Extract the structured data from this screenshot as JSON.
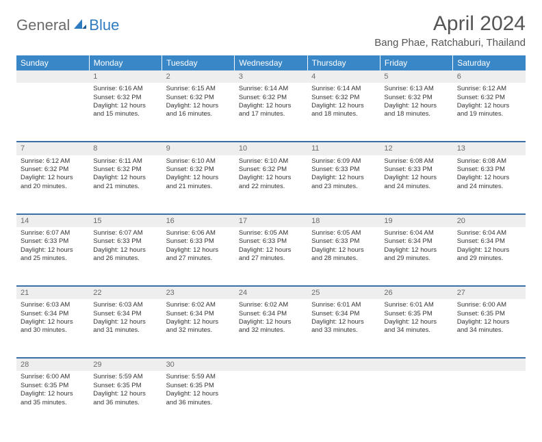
{
  "logo": {
    "part1": "General",
    "part2": "Blue"
  },
  "title": "April 2024",
  "location": "Bang Phae, Ratchaburi, Thailand",
  "colors": {
    "header_bg": "#3a87c8",
    "header_text": "#ffffff",
    "daynum_bg": "#eeeeee",
    "daynum_text": "#6a6a6a",
    "row_border": "#3a6ea5",
    "body_text": "#333333",
    "title_text": "#555555",
    "logo_gray": "#6a6a6a",
    "logo_blue": "#2f7bbf"
  },
  "day_headers": [
    "Sunday",
    "Monday",
    "Tuesday",
    "Wednesday",
    "Thursday",
    "Friday",
    "Saturday"
  ],
  "weeks": [
    [
      {
        "n": "",
        "sr": "",
        "ss": "",
        "dl": ""
      },
      {
        "n": "1",
        "sr": "6:16 AM",
        "ss": "6:32 PM",
        "dl": "12 hours and 15 minutes."
      },
      {
        "n": "2",
        "sr": "6:15 AM",
        "ss": "6:32 PM",
        "dl": "12 hours and 16 minutes."
      },
      {
        "n": "3",
        "sr": "6:14 AM",
        "ss": "6:32 PM",
        "dl": "12 hours and 17 minutes."
      },
      {
        "n": "4",
        "sr": "6:14 AM",
        "ss": "6:32 PM",
        "dl": "12 hours and 18 minutes."
      },
      {
        "n": "5",
        "sr": "6:13 AM",
        "ss": "6:32 PM",
        "dl": "12 hours and 18 minutes."
      },
      {
        "n": "6",
        "sr": "6:12 AM",
        "ss": "6:32 PM",
        "dl": "12 hours and 19 minutes."
      }
    ],
    [
      {
        "n": "7",
        "sr": "6:12 AM",
        "ss": "6:32 PM",
        "dl": "12 hours and 20 minutes."
      },
      {
        "n": "8",
        "sr": "6:11 AM",
        "ss": "6:32 PM",
        "dl": "12 hours and 21 minutes."
      },
      {
        "n": "9",
        "sr": "6:10 AM",
        "ss": "6:32 PM",
        "dl": "12 hours and 21 minutes."
      },
      {
        "n": "10",
        "sr": "6:10 AM",
        "ss": "6:32 PM",
        "dl": "12 hours and 22 minutes."
      },
      {
        "n": "11",
        "sr": "6:09 AM",
        "ss": "6:33 PM",
        "dl": "12 hours and 23 minutes."
      },
      {
        "n": "12",
        "sr": "6:08 AM",
        "ss": "6:33 PM",
        "dl": "12 hours and 24 minutes."
      },
      {
        "n": "13",
        "sr": "6:08 AM",
        "ss": "6:33 PM",
        "dl": "12 hours and 24 minutes."
      }
    ],
    [
      {
        "n": "14",
        "sr": "6:07 AM",
        "ss": "6:33 PM",
        "dl": "12 hours and 25 minutes."
      },
      {
        "n": "15",
        "sr": "6:07 AM",
        "ss": "6:33 PM",
        "dl": "12 hours and 26 minutes."
      },
      {
        "n": "16",
        "sr": "6:06 AM",
        "ss": "6:33 PM",
        "dl": "12 hours and 27 minutes."
      },
      {
        "n": "17",
        "sr": "6:05 AM",
        "ss": "6:33 PM",
        "dl": "12 hours and 27 minutes."
      },
      {
        "n": "18",
        "sr": "6:05 AM",
        "ss": "6:33 PM",
        "dl": "12 hours and 28 minutes."
      },
      {
        "n": "19",
        "sr": "6:04 AM",
        "ss": "6:34 PM",
        "dl": "12 hours and 29 minutes."
      },
      {
        "n": "20",
        "sr": "6:04 AM",
        "ss": "6:34 PM",
        "dl": "12 hours and 29 minutes."
      }
    ],
    [
      {
        "n": "21",
        "sr": "6:03 AM",
        "ss": "6:34 PM",
        "dl": "12 hours and 30 minutes."
      },
      {
        "n": "22",
        "sr": "6:03 AM",
        "ss": "6:34 PM",
        "dl": "12 hours and 31 minutes."
      },
      {
        "n": "23",
        "sr": "6:02 AM",
        "ss": "6:34 PM",
        "dl": "12 hours and 32 minutes."
      },
      {
        "n": "24",
        "sr": "6:02 AM",
        "ss": "6:34 PM",
        "dl": "12 hours and 32 minutes."
      },
      {
        "n": "25",
        "sr": "6:01 AM",
        "ss": "6:34 PM",
        "dl": "12 hours and 33 minutes."
      },
      {
        "n": "26",
        "sr": "6:01 AM",
        "ss": "6:35 PM",
        "dl": "12 hours and 34 minutes."
      },
      {
        "n": "27",
        "sr": "6:00 AM",
        "ss": "6:35 PM",
        "dl": "12 hours and 34 minutes."
      }
    ],
    [
      {
        "n": "28",
        "sr": "6:00 AM",
        "ss": "6:35 PM",
        "dl": "12 hours and 35 minutes."
      },
      {
        "n": "29",
        "sr": "5:59 AM",
        "ss": "6:35 PM",
        "dl": "12 hours and 36 minutes."
      },
      {
        "n": "30",
        "sr": "5:59 AM",
        "ss": "6:35 PM",
        "dl": "12 hours and 36 minutes."
      },
      {
        "n": "",
        "sr": "",
        "ss": "",
        "dl": ""
      },
      {
        "n": "",
        "sr": "",
        "ss": "",
        "dl": ""
      },
      {
        "n": "",
        "sr": "",
        "ss": "",
        "dl": ""
      },
      {
        "n": "",
        "sr": "",
        "ss": "",
        "dl": ""
      }
    ]
  ],
  "labels": {
    "sunrise": "Sunrise:",
    "sunset": "Sunset:",
    "daylight": "Daylight:"
  }
}
